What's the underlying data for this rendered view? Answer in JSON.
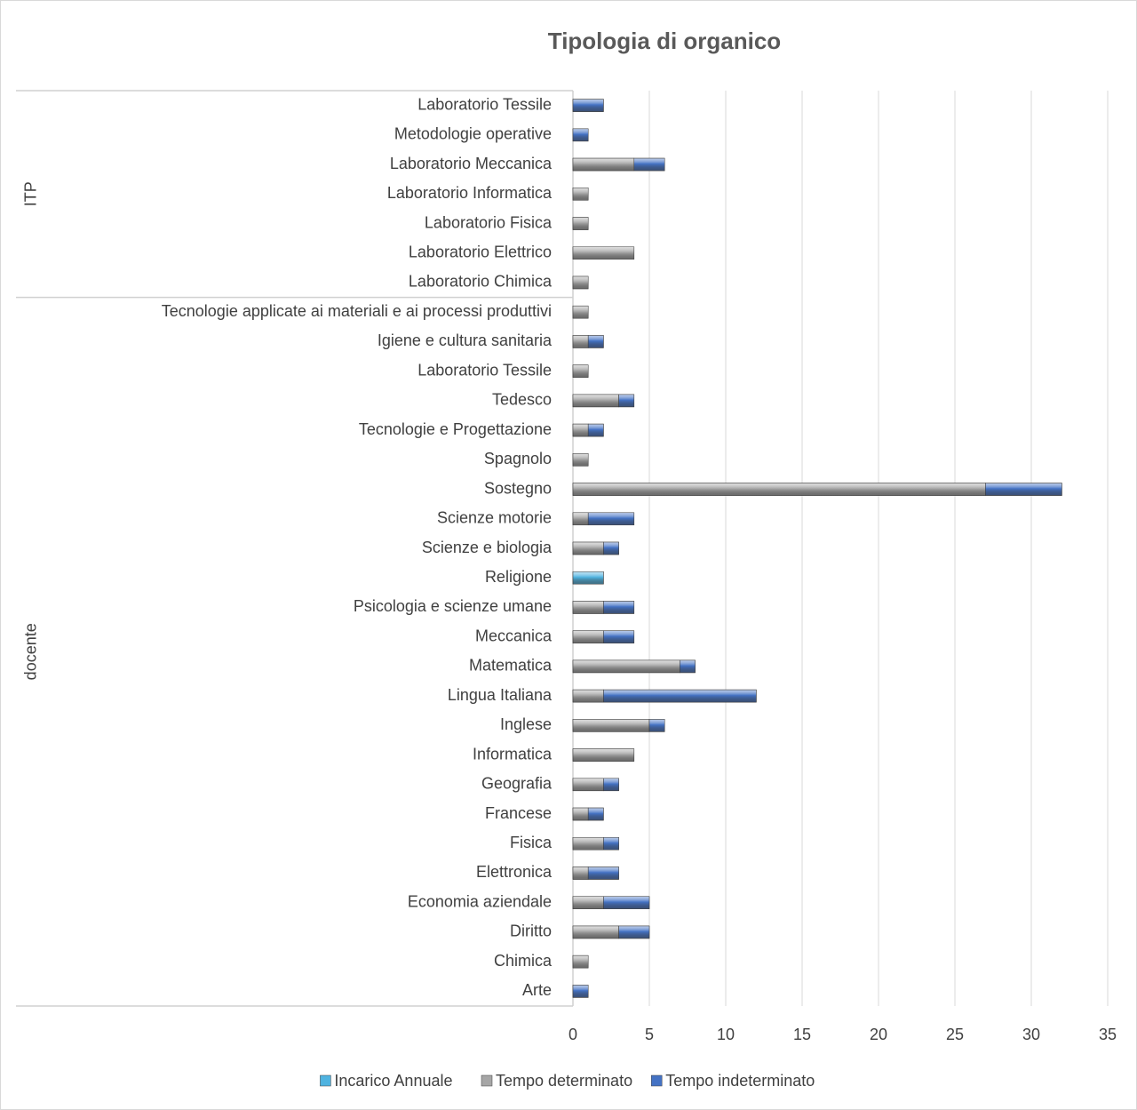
{
  "chart_data": {
    "type": "stacked-barh",
    "title": "Tipologia di organico",
    "groups": [
      {
        "label": "ITP",
        "categories": [
          "Laboratorio Tessile",
          "Metodologie operative",
          "Laboratorio Meccanica",
          "Laboratorio Informatica",
          "Laboratorio Fisica",
          "Laboratorio Elettrico",
          "Laboratorio Chimica"
        ]
      },
      {
        "label": "docente",
        "categories": [
          "Tecnologie applicate ai materiali e ai processi produttivi",
          "Igiene e cultura sanitaria",
          "Laboratorio Tessile",
          "Tedesco",
          "Tecnologie e Progettazione",
          "Spagnolo",
          "Sostegno",
          "Scienze motorie",
          "Scienze e biologia",
          "Religione",
          "Psicologia e scienze umane",
          "Meccanica",
          "Matematica",
          "Lingua Italiana",
          "Inglese",
          "Informatica",
          "Geografia",
          "Francese",
          "Fisica",
          "Elettronica",
          "Economia aziendale",
          "Diritto",
          "Chimica",
          "Arte"
        ]
      }
    ],
    "series": [
      {
        "name": "Incarico Annuale",
        "color": "#4fb3e0",
        "values": [
          null,
          null,
          null,
          null,
          null,
          null,
          null,
          null,
          null,
          null,
          null,
          null,
          null,
          null,
          null,
          null,
          2,
          null,
          null,
          null,
          null,
          null,
          null,
          null,
          null,
          null,
          null,
          null,
          null,
          null,
          null
        ]
      },
      {
        "name": "Tempo determinato",
        "color": "#a6a6a6",
        "values": [
          null,
          null,
          4,
          1,
          1,
          4,
          1,
          1,
          1,
          1,
          3,
          1,
          1,
          27,
          1,
          2,
          null,
          2,
          2,
          7,
          2,
          5,
          4,
          2,
          1,
          2,
          1,
          2,
          3,
          1,
          null
        ]
      },
      {
        "name": "Tempo indeterminato",
        "color": "#4472c4",
        "values": [
          2,
          1,
          2,
          null,
          null,
          null,
          null,
          null,
          1,
          null,
          1,
          1,
          null,
          5,
          3,
          1,
          null,
          2,
          2,
          1,
          10,
          1,
          null,
          1,
          1,
          1,
          2,
          3,
          2,
          null,
          1
        ]
      }
    ],
    "xlim": [
      0,
      35
    ],
    "xticks": [
      0,
      5,
      10,
      15,
      20,
      25,
      30,
      35
    ],
    "grid": true,
    "legend": "bottom"
  }
}
